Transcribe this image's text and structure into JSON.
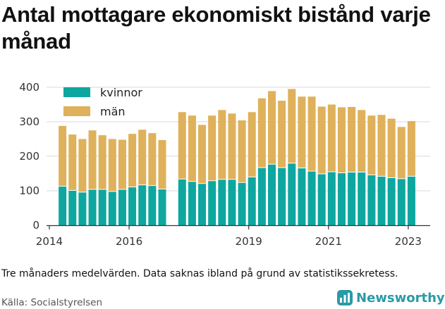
{
  "title": "Antal mottagare ekonomiskt bistånd varje månad",
  "note": "Tre månaders medelvärden. Data saknas ibland på grund av statistikssekretess.",
  "source": "Källa: Socialstyrelsen",
  "logo": {
    "text": "Newsworthy",
    "icon": "bar-chart-icon",
    "color": "#2a9aa6"
  },
  "chart_data": {
    "type": "bar",
    "stacked": true,
    "ylim": [
      0,
      400
    ],
    "yticks": [
      0,
      100,
      200,
      300,
      400
    ],
    "xticks": [
      "2014",
      "2016",
      "2019",
      "2021",
      "2023"
    ],
    "grid": true,
    "legend_position": "top-left",
    "series": [
      {
        "name": "kvinnor",
        "color": "#0ea7a0"
      },
      {
        "name": "män",
        "color": "#dfb15b"
      }
    ],
    "periods": [
      {
        "x": 2014.33,
        "kvinnor": 113,
        "män": 175
      },
      {
        "x": 2014.58,
        "kvinnor": 101,
        "män": 162
      },
      {
        "x": 2014.83,
        "kvinnor": 96,
        "män": 154
      },
      {
        "x": 2015.08,
        "kvinnor": 104,
        "män": 171
      },
      {
        "x": 2015.33,
        "kvinnor": 104,
        "män": 157
      },
      {
        "x": 2015.58,
        "kvinnor": 98,
        "män": 152
      },
      {
        "x": 2015.83,
        "kvinnor": 104,
        "män": 144
      },
      {
        "x": 2016.08,
        "kvinnor": 111,
        "män": 154
      },
      {
        "x": 2016.33,
        "kvinnor": 117,
        "män": 160
      },
      {
        "x": 2016.58,
        "kvinnor": 115,
        "män": 152
      },
      {
        "x": 2016.83,
        "kvinnor": 105,
        "män": 142
      },
      {
        "x": 2017.33,
        "kvinnor": 134,
        "män": 194
      },
      {
        "x": 2017.58,
        "kvinnor": 127,
        "män": 191
      },
      {
        "x": 2017.83,
        "kvinnor": 121,
        "män": 170
      },
      {
        "x": 2018.08,
        "kvinnor": 129,
        "män": 189
      },
      {
        "x": 2018.33,
        "kvinnor": 133,
        "män": 201
      },
      {
        "x": 2018.58,
        "kvinnor": 133,
        "män": 191
      },
      {
        "x": 2018.83,
        "kvinnor": 124,
        "män": 180
      },
      {
        "x": 2019.08,
        "kvinnor": 140,
        "män": 188
      },
      {
        "x": 2019.33,
        "kvinnor": 167,
        "män": 201
      },
      {
        "x": 2019.58,
        "kvinnor": 177,
        "män": 212
      },
      {
        "x": 2019.83,
        "kvinnor": 167,
        "män": 194
      },
      {
        "x": 2020.08,
        "kvinnor": 180,
        "män": 215
      },
      {
        "x": 2020.33,
        "kvinnor": 166,
        "män": 207
      },
      {
        "x": 2020.58,
        "kvinnor": 157,
        "män": 216
      },
      {
        "x": 2020.83,
        "kvinnor": 149,
        "män": 195
      },
      {
        "x": 2021.08,
        "kvinnor": 155,
        "män": 195
      },
      {
        "x": 2021.33,
        "kvinnor": 152,
        "män": 190
      },
      {
        "x": 2021.58,
        "kvinnor": 154,
        "män": 189
      },
      {
        "x": 2021.83,
        "kvinnor": 154,
        "män": 180
      },
      {
        "x": 2022.08,
        "kvinnor": 146,
        "män": 172
      },
      {
        "x": 2022.33,
        "kvinnor": 142,
        "män": 178
      },
      {
        "x": 2022.58,
        "kvinnor": 138,
        "män": 171
      },
      {
        "x": 2022.83,
        "kvinnor": 135,
        "män": 150
      },
      {
        "x": 2023.08,
        "kvinnor": 142,
        "män": 160
      }
    ]
  }
}
